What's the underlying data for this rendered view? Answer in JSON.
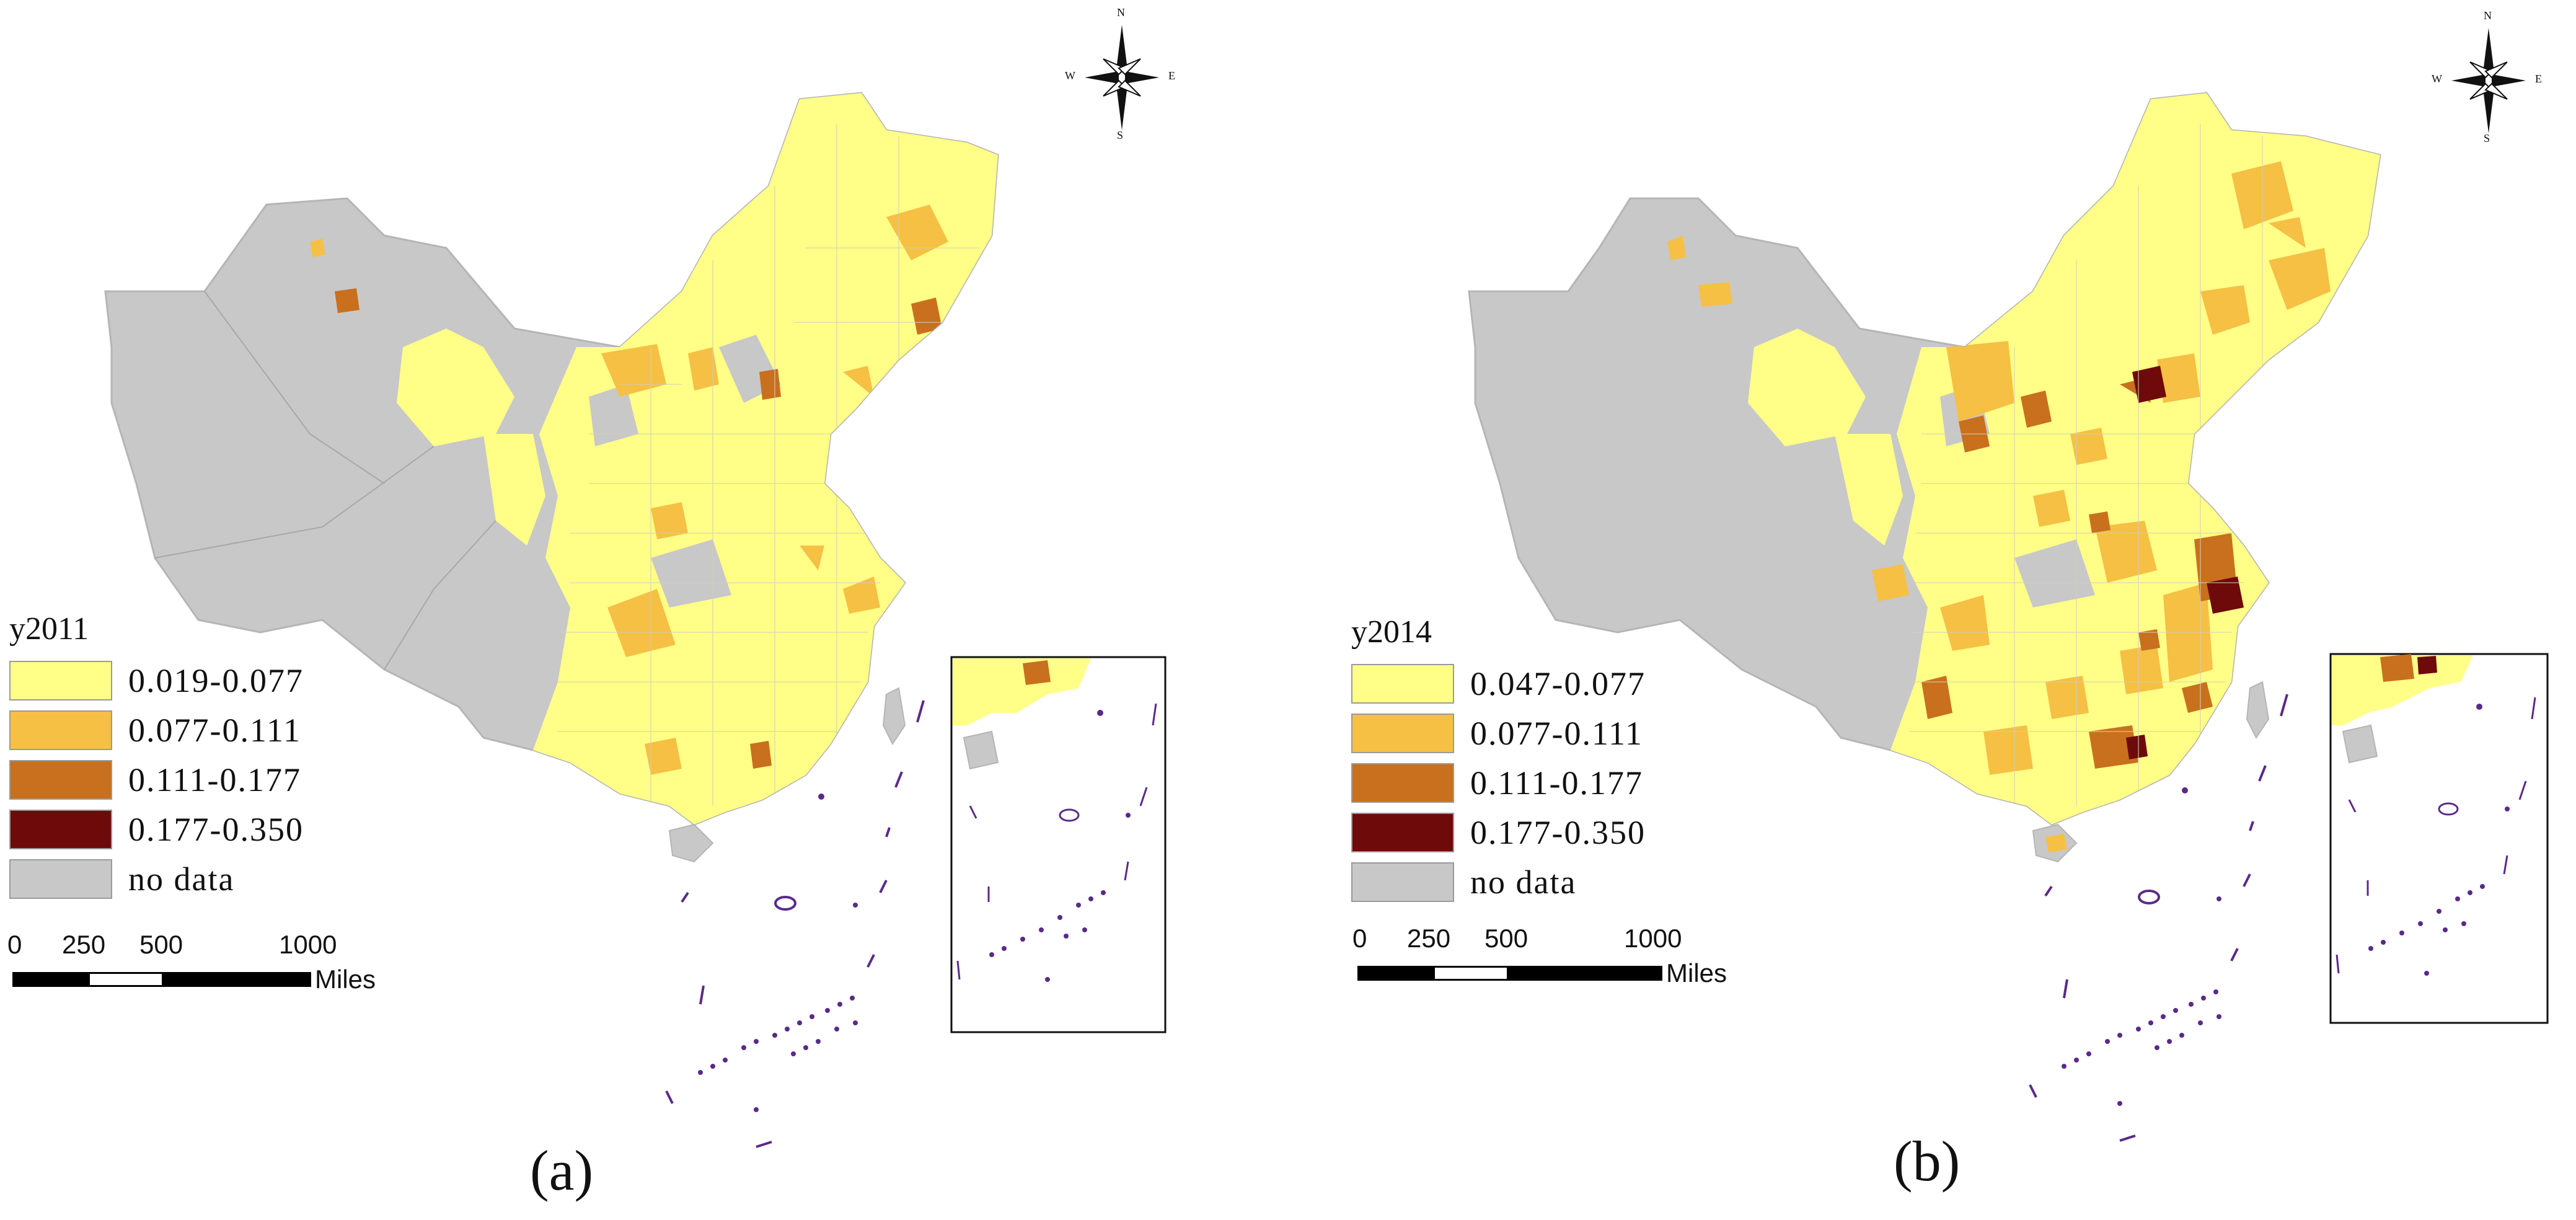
{
  "legend_colors": {
    "class1": "#ffff88",
    "class2": "#f5c044",
    "class3": "#c8701e",
    "class4": "#6e0a0a",
    "nodata": "#c8c8c8",
    "island_outline": "#5a2a8a"
  },
  "panels": [
    {
      "label": "(a)",
      "legend_title": "y2011",
      "legend_items": [
        {
          "label": "0.019-0.077",
          "color": "#ffff88"
        },
        {
          "label": "0.077-0.111",
          "color": "#f5c044"
        },
        {
          "label": "0.111-0.177",
          "color": "#c8701e"
        },
        {
          "label": "0.177-0.350",
          "color": "#6e0a0a"
        },
        {
          "label": "no data",
          "color": "#c8c8c8"
        }
      ],
      "scale": {
        "ticks": [
          "0",
          "250",
          "500",
          "1000"
        ],
        "unit": "Miles"
      },
      "compass": {
        "n": "N",
        "s": "S",
        "e": "E",
        "w": "W"
      }
    },
    {
      "label": "(b)",
      "legend_title": "y2014",
      "legend_items": [
        {
          "label": "0.047-0.077",
          "color": "#ffff88"
        },
        {
          "label": "0.077-0.111",
          "color": "#f5c044"
        },
        {
          "label": "0.111-0.177",
          "color": "#c8701e"
        },
        {
          "label": "0.177-0.350",
          "color": "#6e0a0a"
        },
        {
          "label": "no data",
          "color": "#c8c8c8"
        }
      ],
      "scale": {
        "ticks": [
          "0",
          "250",
          "500",
          "1000"
        ],
        "unit": "Miles"
      },
      "compass": {
        "n": "N",
        "s": "S",
        "e": "E",
        "w": "W"
      }
    }
  ]
}
